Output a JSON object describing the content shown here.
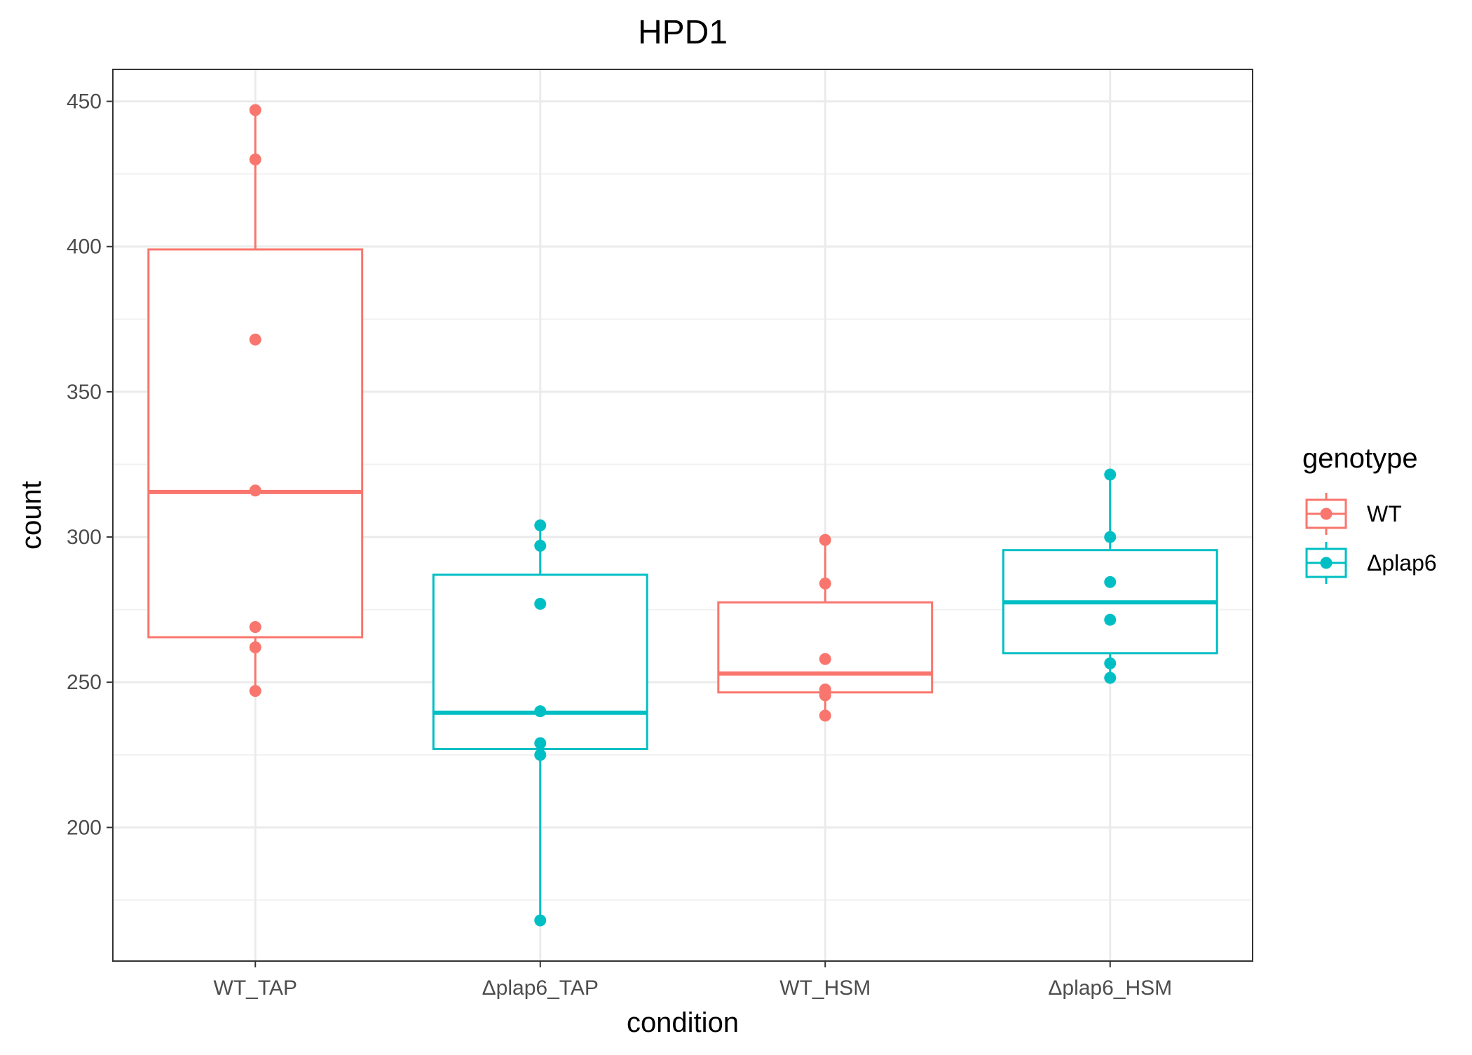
{
  "chart_data": {
    "type": "boxplot",
    "title": "HPD1",
    "xlabel": "condition",
    "ylabel": "count",
    "ylim": [
      154,
      461
    ],
    "yticks": [
      200,
      250,
      300,
      350,
      400,
      450
    ],
    "grid": true,
    "legend_position": "right",
    "legend": {
      "title": "genotype",
      "entries": [
        {
          "label": "WT",
          "color": "#F8766D"
        },
        {
          "label": "Δplap6",
          "color": "#00BFC4"
        }
      ]
    },
    "categories": [
      "WT_TAP",
      "Δplap6_TAP",
      "WT_HSM",
      "Δplap6_HSM"
    ],
    "boxes": [
      {
        "category": "WT_TAP",
        "genotype": "WT",
        "color": "#F8766D",
        "min": 247,
        "q1": 265.5,
        "median": 315.5,
        "q3": 399,
        "max": 447,
        "points": [
          447,
          430,
          368,
          316,
          269,
          262,
          247
        ]
      },
      {
        "category": "Δplap6_TAP",
        "genotype": "Δplap6",
        "color": "#00BFC4",
        "min": 168,
        "q1": 227,
        "median": 239.5,
        "q3": 287,
        "max": 304,
        "points": [
          304,
          297,
          277,
          240,
          229,
          225,
          168
        ]
      },
      {
        "category": "WT_HSM",
        "genotype": "WT",
        "color": "#F8766D",
        "min": 238.5,
        "q1": 246.5,
        "median": 253,
        "q3": 277.5,
        "max": 299,
        "points": [
          299,
          284,
          258,
          247.5,
          245.5,
          238.5
        ]
      },
      {
        "category": "Δplap6_HSM",
        "genotype": "Δplap6",
        "color": "#00BFC4",
        "min": 251.5,
        "q1": 260,
        "median": 277.5,
        "q3": 295.5,
        "max": 321.5,
        "points": [
          321.5,
          300,
          284.5,
          271.5,
          256.5,
          251.5
        ]
      }
    ]
  }
}
